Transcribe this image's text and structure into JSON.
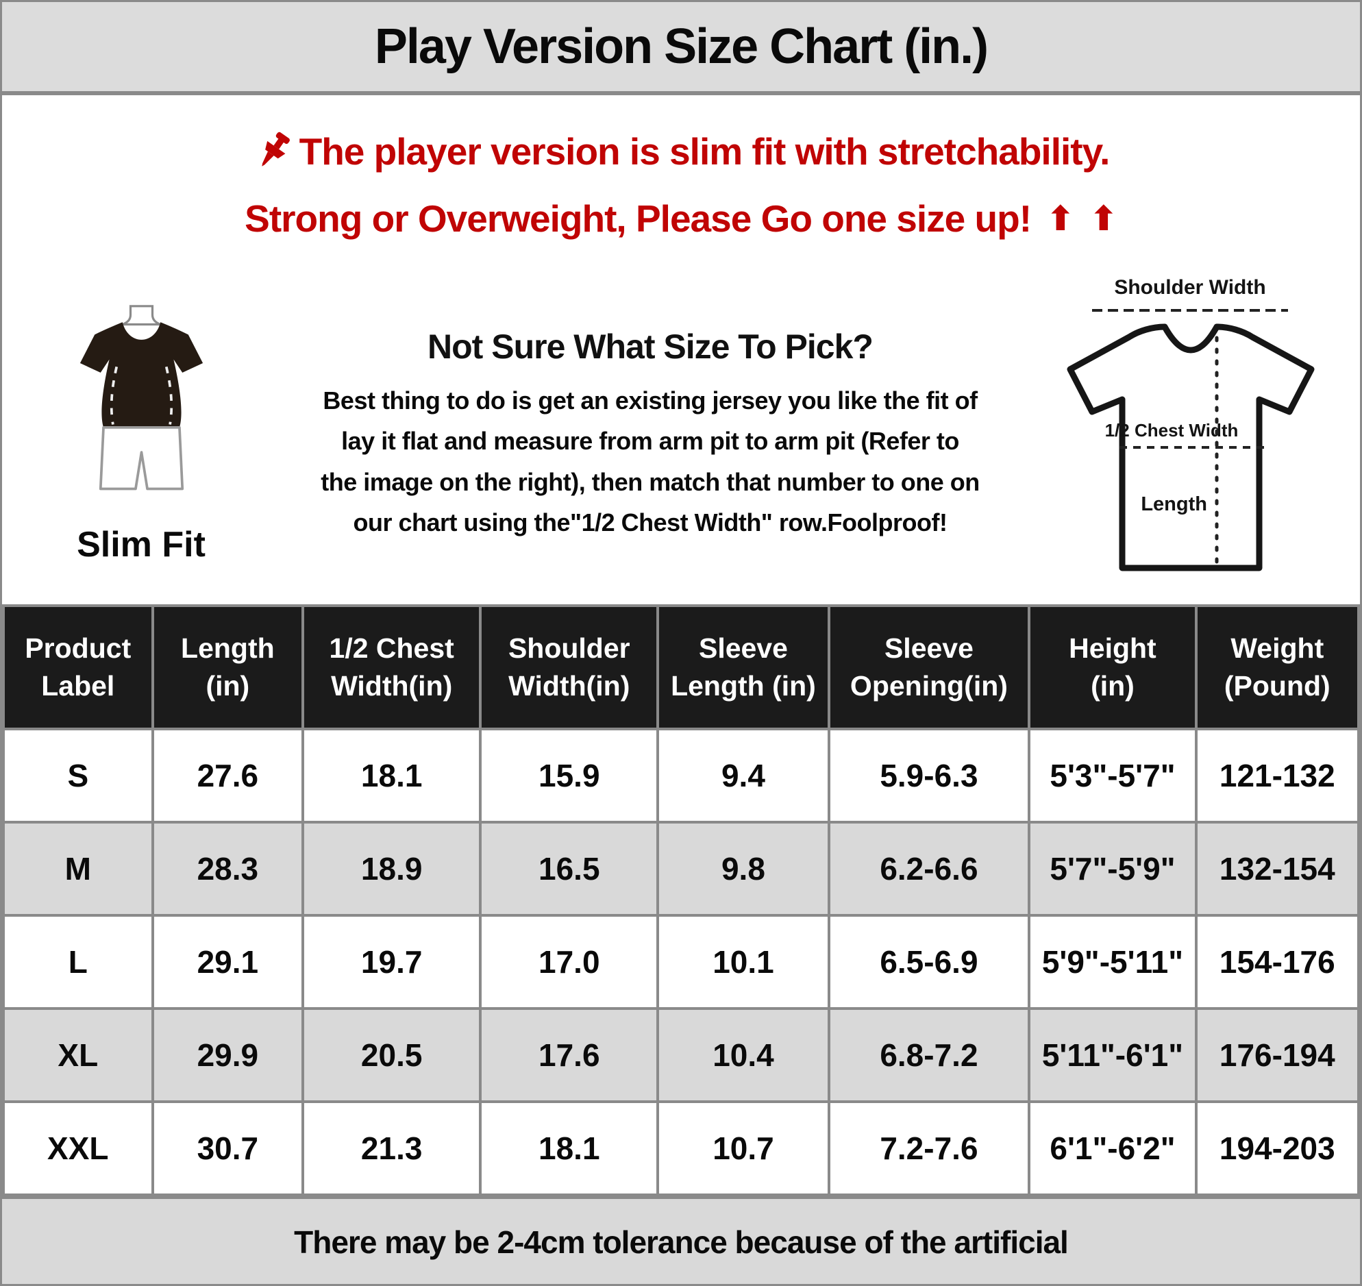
{
  "title": "Play Version Size Chart (in.)",
  "notice": {
    "line1": "The player version is slim fit with stretchability.",
    "line2": "Strong or Overweight, Please Go one size up!",
    "up_arrow_glyph": "⬆",
    "icons": {
      "pin": "pushpin-icon",
      "arrows": "up-arrow-icon"
    }
  },
  "guide": {
    "slim_fit_label": "Slim Fit",
    "heading": "Not Sure What Size To Pick?",
    "body": "Best thing to do is get an existing jersey you like the fit of\nlay it flat and measure from arm pit to arm pit (Refer to\nthe image on the right), then match that number to one on\nour chart using the\"1/2 Chest Width\" row.Foolproof!",
    "diagram": {
      "shoulder_width_label": "Shoulder Width",
      "half_chest_width_label": "1/2 Chest Width",
      "length_label": "Length"
    }
  },
  "table": {
    "columns": [
      "Product\nLabel",
      "Length\n(in)",
      "1/2 Chest\nWidth(in)",
      "Shoulder\nWidth(in)",
      "Sleeve\nLength (in)",
      "Sleeve\nOpening(in)",
      "Height\n(in)",
      "Weight\n(Pound)"
    ],
    "rows": [
      [
        "S",
        "27.6",
        "18.1",
        "15.9",
        "9.4",
        "5.9-6.3",
        "5'3\"-5'7\"",
        "121-132"
      ],
      [
        "M",
        "28.3",
        "18.9",
        "16.5",
        "9.8",
        "6.2-6.6",
        "5'7\"-5'9\"",
        "132-154"
      ],
      [
        "L",
        "29.1",
        "19.7",
        "17.0",
        "10.1",
        "6.5-6.9",
        "5'9\"-5'11\"",
        "154-176"
      ],
      [
        "XL",
        "29.9",
        "20.5",
        "17.6",
        "10.4",
        "6.8-7.2",
        "5'11\"-6'1\"",
        "176-194"
      ],
      [
        "XXL",
        "30.7",
        "21.3",
        "18.1",
        "10.7",
        "7.2-7.6",
        "6'1\"-6'2\"",
        "194-203"
      ]
    ]
  },
  "footer": {
    "text": "There may be 2-4cm tolerance because of the artificial"
  },
  "colors": {
    "accent_red": "#c00404",
    "title_bar_bg": "#dcdcdc",
    "table_header_bg": "#1b1b1b",
    "table_header_text": "#ffffff",
    "alt_row_bg": "#d9d9d9",
    "footer_bg": "#d9d9d9",
    "border_gray": "#8a8a8a",
    "shirt_dark": "#251b13"
  }
}
